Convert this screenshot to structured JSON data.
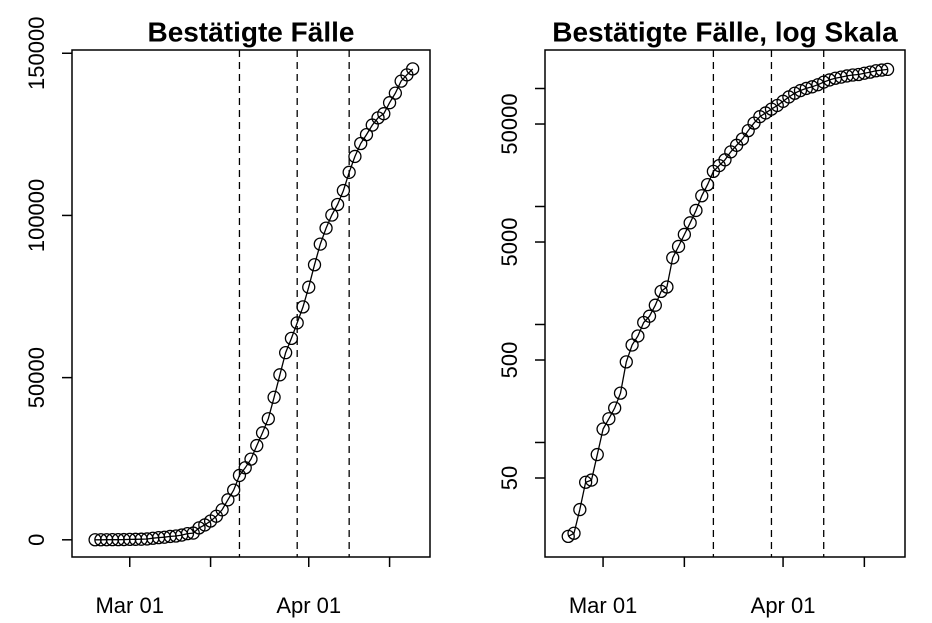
{
  "chart_data": [
    {
      "type": "line",
      "title": "Bestätigte Fälle",
      "log": false,
      "color": "#000000",
      "x": [
        "Feb 24",
        "Feb 25",
        "Feb 26",
        "Feb 27",
        "Feb 28",
        "Feb 29",
        "Mar 01",
        "Mar 02",
        "Mar 03",
        "Mar 04",
        "Mar 05",
        "Mar 06",
        "Mar 07",
        "Mar 08",
        "Mar 09",
        "Mar 10",
        "Mar 11",
        "Mar 12",
        "Mar 13",
        "Mar 14",
        "Mar 15",
        "Mar 16",
        "Mar 17",
        "Mar 18",
        "Mar 19",
        "Mar 20",
        "Mar 21",
        "Mar 22",
        "Mar 23",
        "Mar 24",
        "Mar 25",
        "Mar 26",
        "Mar 27",
        "Mar 28",
        "Mar 29",
        "Mar 30",
        "Mar 31",
        "Apr 01",
        "Apr 02",
        "Apr 03",
        "Apr 04",
        "Apr 05",
        "Apr 06",
        "Apr 07",
        "Apr 08",
        "Apr 09",
        "Apr 10",
        "Apr 11",
        "Apr 12",
        "Apr 13",
        "Apr 14",
        "Apr 15",
        "Apr 16",
        "Apr 17",
        "Apr 18",
        "Apr 19"
      ],
      "values": [
        16,
        17,
        27,
        46,
        48,
        79,
        130,
        159,
        196,
        262,
        482,
        670,
        799,
        1040,
        1176,
        1457,
        1908,
        2078,
        3675,
        4585,
        5795,
        7272,
        9257,
        12327,
        15320,
        19848,
        22213,
        24873,
        29056,
        32986,
        37323,
        43938,
        50871,
        57695,
        62095,
        66885,
        71808,
        77872,
        84794,
        91159,
        96092,
        100123,
        103374,
        107663,
        113296,
        118181,
        122171,
        124908,
        127854,
        130072,
        131359,
        134753,
        137698,
        141397,
        143342,
        145184
      ],
      "xlim": [
        "Feb 20",
        "Apr 22"
      ],
      "xticks": [
        "Mar 01",
        {
          "value": "Mar 15",
          "label": null
        },
        "Apr 01",
        {
          "value": "Apr 15",
          "label": null
        }
      ],
      "ylim": [
        -5300,
        151000
      ],
      "yticks": [
        0,
        50000,
        100000,
        150000
      ],
      "vlines": [
        "Mar 20",
        "Mar 30",
        "Apr 08"
      ]
    },
    {
      "type": "line",
      "title": "Bestätigte Fälle, log Skala",
      "log": true,
      "color": "#000000",
      "x": [
        "Feb 24",
        "Feb 25",
        "Feb 26",
        "Feb 27",
        "Feb 28",
        "Feb 29",
        "Mar 01",
        "Mar 02",
        "Mar 03",
        "Mar 04",
        "Mar 05",
        "Mar 06",
        "Mar 07",
        "Mar 08",
        "Mar 09",
        "Mar 10",
        "Mar 11",
        "Mar 12",
        "Mar 13",
        "Mar 14",
        "Mar 15",
        "Mar 16",
        "Mar 17",
        "Mar 18",
        "Mar 19",
        "Mar 20",
        "Mar 21",
        "Mar 22",
        "Mar 23",
        "Mar 24",
        "Mar 25",
        "Mar 26",
        "Mar 27",
        "Mar 28",
        "Mar 29",
        "Mar 30",
        "Mar 31",
        "Apr 01",
        "Apr 02",
        "Apr 03",
        "Apr 04",
        "Apr 05",
        "Apr 06",
        "Apr 07",
        "Apr 08",
        "Apr 09",
        "Apr 10",
        "Apr 11",
        "Apr 12",
        "Apr 13",
        "Apr 14",
        "Apr 15",
        "Apr 16",
        "Apr 17",
        "Apr 18",
        "Apr 19"
      ],
      "values": [
        16,
        17,
        27,
        46,
        48,
        79,
        130,
        159,
        196,
        262,
        482,
        670,
        799,
        1040,
        1176,
        1457,
        1908,
        2078,
        3675,
        4585,
        5795,
        7272,
        9257,
        12327,
        15320,
        19848,
        22213,
        24873,
        29056,
        32986,
        37323,
        43938,
        50871,
        57695,
        62095,
        66885,
        71808,
        77872,
        84794,
        91159,
        96092,
        100123,
        103374,
        107663,
        113296,
        118181,
        122171,
        124908,
        127854,
        130072,
        131359,
        134753,
        137698,
        141397,
        143342,
        145184
      ],
      "xlim": [
        "Feb 20",
        "Apr 22"
      ],
      "xticks": [
        "Mar 01",
        {
          "value": "Mar 15",
          "label": null
        },
        "Apr 01",
        {
          "value": "Apr 15",
          "label": null
        }
      ],
      "ylim": [
        10.7,
        212000
      ],
      "yticks": [
        50,
        {
          "value": 100,
          "label": null
        },
        500,
        {
          "value": 1000,
          "label": null
        },
        5000,
        {
          "value": 10000,
          "label": null
        },
        50000,
        {
          "value": 100000,
          "label": null
        }
      ],
      "vlines": [
        "Mar 20",
        "Mar 30",
        "Apr 08"
      ]
    }
  ]
}
